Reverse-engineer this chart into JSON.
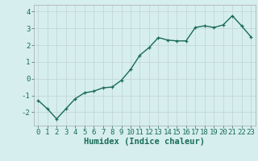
{
  "x": [
    0,
    1,
    2,
    3,
    4,
    5,
    6,
    7,
    8,
    9,
    10,
    11,
    12,
    13,
    14,
    15,
    16,
    17,
    18,
    19,
    20,
    21,
    22,
    23
  ],
  "y": [
    -1.3,
    -1.8,
    -2.4,
    -1.8,
    -1.2,
    -0.85,
    -0.75,
    -0.55,
    -0.5,
    -0.1,
    0.55,
    1.4,
    1.85,
    2.45,
    2.3,
    2.25,
    2.25,
    3.05,
    3.15,
    3.05,
    3.2,
    3.75,
    3.15,
    2.5
  ],
  "line_color": "#1a6b5a",
  "marker": "+",
  "bg_color": "#d6eeee",
  "grid_color": "#c0d4d4",
  "xlabel": "Humidex (Indice chaleur)",
  "ylim": [
    -2.8,
    4.4
  ],
  "xlim": [
    -0.5,
    23.5
  ],
  "yticks": [
    -2,
    -1,
    0,
    1,
    2,
    3,
    4
  ],
  "xtick_labels": [
    "0",
    "1",
    "2",
    "3",
    "4",
    "5",
    "6",
    "7",
    "8",
    "9",
    "10",
    "11",
    "12",
    "13",
    "14",
    "15",
    "16",
    "17",
    "18",
    "19",
    "20",
    "21",
    "22",
    "23"
  ],
  "xlabel_fontsize": 7.5,
  "tick_fontsize": 6.5,
  "line_width": 1.0,
  "marker_size": 3.5
}
